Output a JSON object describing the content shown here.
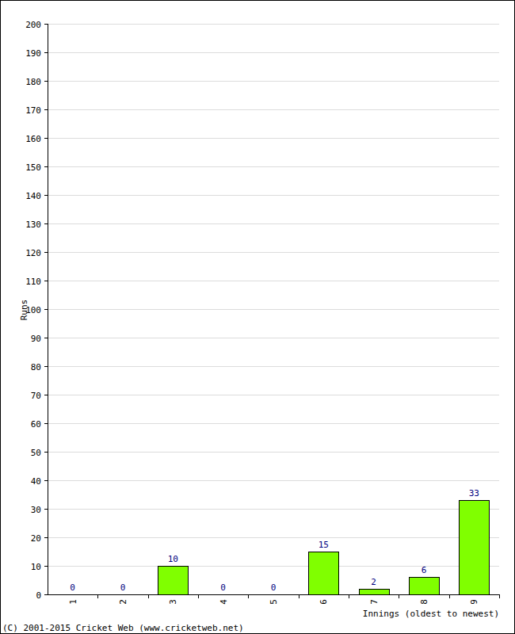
{
  "chart_data": {
    "type": "bar",
    "x_label": "Innings (oldest to newest)",
    "y_label": "Runs",
    "categories": [
      "1",
      "2",
      "3",
      "4",
      "5",
      "6",
      "7",
      "8",
      "9"
    ],
    "values": [
      0,
      0,
      10,
      0,
      0,
      15,
      2,
      6,
      33
    ],
    "color": "#80ff00",
    "ylim": [
      0,
      200
    ],
    "yticks": [
      0,
      10,
      20,
      30,
      40,
      50,
      60,
      70,
      80,
      90,
      100,
      110,
      120,
      130,
      140,
      150,
      160,
      170,
      180,
      190,
      200
    ],
    "grid": true,
    "data_labels": true,
    "annotations": [
      "(C) 2001-2015 Cricket Web (www.cricketweb.net)"
    ]
  }
}
